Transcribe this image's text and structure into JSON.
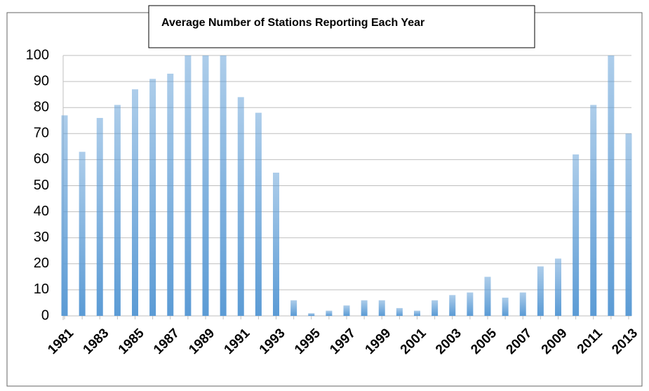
{
  "chart_data": {
    "type": "bar",
    "title": "Average Number of Stations Reporting Each Year",
    "categories": [
      "1981",
      null,
      "1983",
      null,
      "1985",
      null,
      "1987",
      null,
      "1989",
      null,
      "1991",
      null,
      "1993",
      null,
      "1995",
      null,
      "1997",
      null,
      "1999",
      null,
      "2001",
      null,
      "2003",
      null,
      "2005",
      null,
      "2007",
      null,
      "2009",
      null,
      "2011",
      null,
      "2013"
    ],
    "values": [
      77,
      63,
      76,
      81,
      87,
      91,
      93,
      100,
      100,
      100,
      84,
      78,
      55,
      6,
      1,
      2,
      4,
      6,
      6,
      3,
      2,
      6,
      8,
      9,
      15,
      7,
      9,
      19,
      22,
      62,
      81,
      100,
      70
    ],
    "color": "#5b9bd5",
    "ylim": [
      0,
      100
    ],
    "yticks": [
      0,
      10,
      20,
      30,
      40,
      50,
      60,
      70,
      80,
      90,
      100
    ],
    "grid": true
  }
}
